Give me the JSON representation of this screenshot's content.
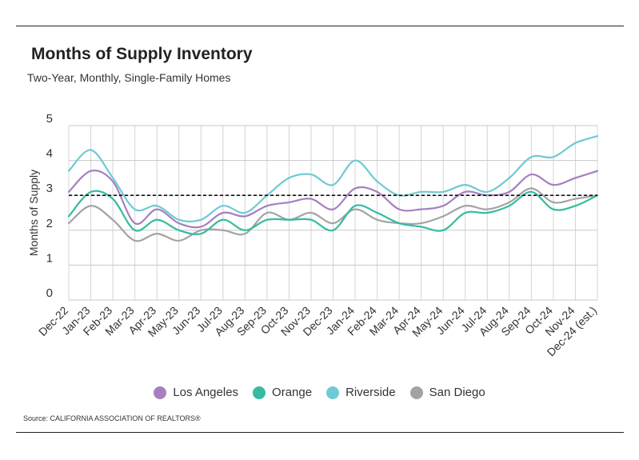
{
  "header": {
    "title": "Months of Supply Inventory",
    "subtitle": "Two-Year, Monthly, Single-Family Homes"
  },
  "source": "Source:  CALIFORNIA ASSOCIATION OF REALTORS®",
  "chart_data": {
    "type": "line",
    "title": "Months of Supply Inventory",
    "subtitle": "Two-Year, Monthly, Single-Family Homes",
    "xlabel": "",
    "ylabel": "Months of Supply",
    "ylim": [
      0,
      5
    ],
    "yticks": [
      "0",
      "1",
      "2",
      "3",
      "4",
      "5"
    ],
    "grid": true,
    "legend_position": "bottom",
    "categories": [
      "Dec-22",
      "Jan-23",
      "Feb-23",
      "Mar-23",
      "Apr-23",
      "May-23",
      "Jun-23",
      "Jul-23",
      "Aug-23",
      "Sep-23",
      "Oct-23",
      "Nov-23",
      "Dec-23",
      "Jan-24",
      "Feb-24",
      "Mar-24",
      "Apr-24",
      "May-24",
      "Jun-24",
      "Jul-24",
      "Aug-24",
      "Sep-24",
      "Oct-24",
      "Nov-24",
      "Dec-24 (est.)"
    ],
    "reference_line": 3.0,
    "series": [
      {
        "name": "Los Angeles",
        "color": "#a67fc1",
        "values": [
          3.1,
          3.7,
          3.4,
          2.2,
          2.6,
          2.2,
          2.1,
          2.5,
          2.4,
          2.7,
          2.8,
          2.9,
          2.6,
          3.2,
          3.1,
          2.6,
          2.6,
          2.7,
          3.1,
          3.0,
          3.1,
          3.6,
          3.3,
          3.5,
          3.7
        ]
      },
      {
        "name": "Orange",
        "color": "#35bba0",
        "values": [
          2.4,
          3.1,
          2.9,
          2.0,
          2.3,
          2.0,
          1.9,
          2.3,
          2.0,
          2.3,
          2.3,
          2.3,
          2.0,
          2.7,
          2.5,
          2.2,
          2.1,
          2.0,
          2.5,
          2.5,
          2.7,
          3.1,
          2.6,
          2.7,
          3.0
        ]
      },
      {
        "name": "Riverside",
        "color": "#6fcad3",
        "values": [
          3.7,
          4.3,
          3.5,
          2.6,
          2.7,
          2.3,
          2.3,
          2.7,
          2.5,
          3.0,
          3.5,
          3.6,
          3.3,
          4.0,
          3.4,
          3.0,
          3.1,
          3.1,
          3.3,
          3.1,
          3.5,
          4.1,
          4.1,
          4.5,
          4.7
        ]
      },
      {
        "name": "San Diego",
        "color": "#a3a3a3",
        "values": [
          2.2,
          2.7,
          2.3,
          1.7,
          1.9,
          1.7,
          2.0,
          2.0,
          1.9,
          2.5,
          2.3,
          2.5,
          2.2,
          2.6,
          2.3,
          2.2,
          2.2,
          2.4,
          2.7,
          2.6,
          2.8,
          3.2,
          2.8,
          2.9,
          3.0
        ]
      }
    ]
  }
}
